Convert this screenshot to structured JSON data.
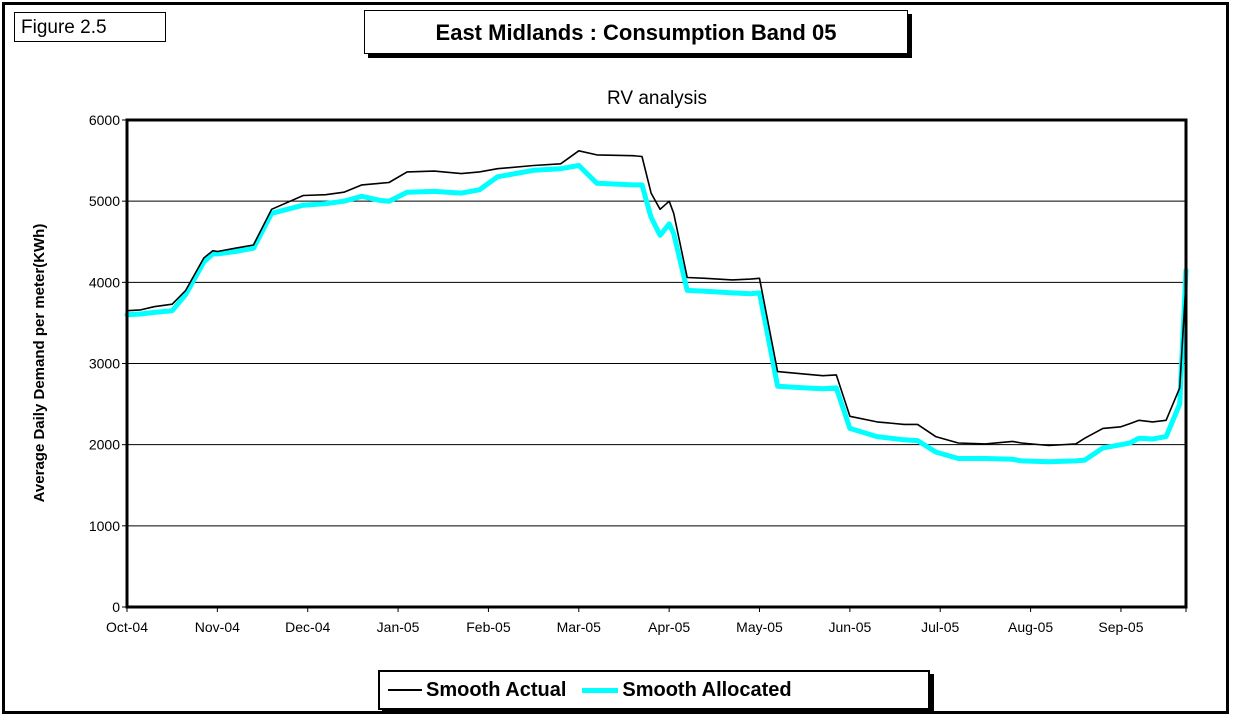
{
  "figure_label": "Figure 2.5",
  "title": "East Midlands :  Consumption Band 05",
  "chart_data": {
    "type": "line",
    "subtitle": "RV analysis",
    "ylabel": "Average Daily Demand per meter(KWh)",
    "xlabel": "",
    "ylim": [
      0,
      6000
    ],
    "yticks": [
      0,
      1000,
      2000,
      3000,
      4000,
      5000,
      6000
    ],
    "xlim": [
      0,
      11.72
    ],
    "categories": [
      "Oct-04",
      "Nov-04",
      "Dec-04",
      "Jan-05",
      "Feb-05",
      "Mar-05",
      "Apr-05",
      "May-05",
      "Jun-05",
      "Jul-05",
      "Aug-05",
      "Sep-05"
    ],
    "grid": true,
    "legend_position": "bottom",
    "series": [
      {
        "name": "Smooth Actual",
        "color": "#000000",
        "x": [
          0,
          0.15,
          0.3,
          0.5,
          0.65,
          0.85,
          0.95,
          1.0,
          1.2,
          1.4,
          1.6,
          1.95,
          2.2,
          2.4,
          2.6,
          2.8,
          2.9,
          3.1,
          3.4,
          3.7,
          3.9,
          4.1,
          4.5,
          4.8,
          5.0,
          5.2,
          5.6,
          5.7,
          5.8,
          5.9,
          6.0,
          6.05,
          6.2,
          6.4,
          6.7,
          6.9,
          7.0,
          7.2,
          7.5,
          7.7,
          7.85,
          8.0,
          8.3,
          8.6,
          8.75,
          8.95,
          9.2,
          9.5,
          9.8,
          9.9,
          10.2,
          10.5,
          10.6,
          10.8,
          11.0,
          11.1,
          11.2,
          11.35,
          11.5,
          11.65,
          11.72
        ],
        "values": [
          3650,
          3660,
          3700,
          3730,
          3900,
          4300,
          4390,
          4380,
          4420,
          4460,
          4900,
          5070,
          5080,
          5110,
          5200,
          5220,
          5230,
          5360,
          5370,
          5340,
          5360,
          5400,
          5440,
          5460,
          5620,
          5570,
          5560,
          5550,
          5100,
          4900,
          5000,
          4850,
          4060,
          4050,
          4030,
          4040,
          4050,
          2900,
          2870,
          2850,
          2860,
          2350,
          2280,
          2250,
          2250,
          2100,
          2020,
          2010,
          2040,
          2020,
          1990,
          2010,
          2080,
          2200,
          2220,
          2260,
          2300,
          2280,
          2300,
          2700,
          4000
        ]
      },
      {
        "name": "Smooth Allocated",
        "color": "#00ffff",
        "x": [
          0,
          0.15,
          0.3,
          0.5,
          0.65,
          0.85,
          0.95,
          1.0,
          1.2,
          1.4,
          1.6,
          1.95,
          2.2,
          2.4,
          2.6,
          2.8,
          2.9,
          3.1,
          3.4,
          3.7,
          3.9,
          4.1,
          4.5,
          4.8,
          5.0,
          5.2,
          5.6,
          5.7,
          5.8,
          5.9,
          6.0,
          6.05,
          6.2,
          6.4,
          6.7,
          6.9,
          7.0,
          7.2,
          7.5,
          7.7,
          7.85,
          8.0,
          8.3,
          8.6,
          8.75,
          8.95,
          9.2,
          9.5,
          9.8,
          9.9,
          10.2,
          10.5,
          10.6,
          10.8,
          11.0,
          11.1,
          11.2,
          11.35,
          11.5,
          11.65,
          11.72
        ],
        "values": [
          3600,
          3610,
          3630,
          3650,
          3850,
          4250,
          4350,
          4350,
          4380,
          4420,
          4850,
          4950,
          4970,
          5000,
          5060,
          5010,
          5000,
          5110,
          5120,
          5100,
          5140,
          5300,
          5380,
          5400,
          5440,
          5220,
          5200,
          5200,
          4800,
          4580,
          4720,
          4600,
          3900,
          3890,
          3870,
          3860,
          3870,
          2720,
          2700,
          2690,
          2700,
          2200,
          2100,
          2060,
          2050,
          1910,
          1830,
          1830,
          1820,
          1800,
          1790,
          1800,
          1810,
          1960,
          2000,
          2020,
          2080,
          2070,
          2100,
          2500,
          4150
        ]
      }
    ]
  }
}
